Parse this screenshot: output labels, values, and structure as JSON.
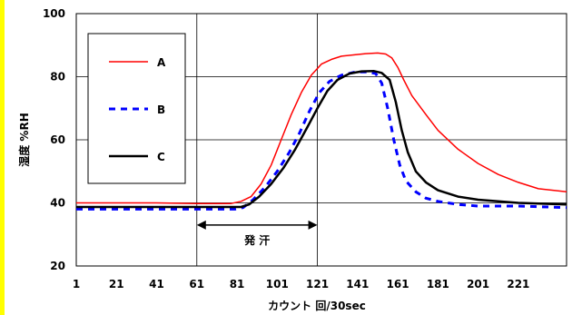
{
  "chart_data": {
    "type": "line",
    "xlabel": "カウント  回/30sec",
    "ylabel": "湿度  %RH",
    "xlim": [
      1,
      245
    ],
    "ylim": [
      20,
      100
    ],
    "x_ticks": [
      1,
      21,
      41,
      61,
      81,
      101,
      121,
      141,
      161,
      181,
      201,
      221
    ],
    "y_ticks": [
      20,
      40,
      60,
      80,
      100
    ],
    "grid": "horizontal gridlines at 40, 60, 80; vertical lines at x=61 and x=121",
    "legend_position": "top-left",
    "annotation": {
      "text": "発  汗",
      "x_start": 61,
      "x_end": 121,
      "y": 33
    },
    "colors": {
      "A": "#ff0000",
      "B": "#0000ff",
      "C": "#000000",
      "left_strip": "#ffff00"
    },
    "series": [
      {
        "name": "A",
        "style": "solid",
        "points": [
          [
            1,
            40
          ],
          [
            21,
            40
          ],
          [
            41,
            40
          ],
          [
            61,
            39.8
          ],
          [
            78,
            39.8
          ],
          [
            83,
            40.5
          ],
          [
            88,
            42
          ],
          [
            93,
            46
          ],
          [
            98,
            52
          ],
          [
            103,
            60
          ],
          [
            108,
            68
          ],
          [
            113,
            75
          ],
          [
            118,
            80.5
          ],
          [
            123,
            84
          ],
          [
            128,
            85.5
          ],
          [
            133,
            86.5
          ],
          [
            140,
            87
          ],
          [
            145,
            87.3
          ],
          [
            151,
            87.5
          ],
          [
            155,
            87.2
          ],
          [
            158,
            86
          ],
          [
            161,
            83
          ],
          [
            164,
            79
          ],
          [
            168,
            74
          ],
          [
            175,
            68
          ],
          [
            181,
            63
          ],
          [
            191,
            57
          ],
          [
            201,
            52.5
          ],
          [
            211,
            49
          ],
          [
            221,
            46.5
          ],
          [
            231,
            44.5
          ],
          [
            245,
            43.5
          ]
        ]
      },
      {
        "name": "B",
        "style": "dashed",
        "points": [
          [
            1,
            38
          ],
          [
            21,
            38
          ],
          [
            41,
            38
          ],
          [
            61,
            38
          ],
          [
            80,
            38
          ],
          [
            84,
            38.5
          ],
          [
            89,
            41
          ],
          [
            95,
            45
          ],
          [
            101,
            50
          ],
          [
            107,
            56
          ],
          [
            112,
            62
          ],
          [
            117,
            69
          ],
          [
            122,
            75
          ],
          [
            127,
            78.5
          ],
          [
            133,
            80.5
          ],
          [
            140,
            81.5
          ],
          [
            146,
            81.5
          ],
          [
            150,
            81
          ],
          [
            153,
            78
          ],
          [
            156,
            70
          ],
          [
            159,
            60
          ],
          [
            162,
            52
          ],
          [
            165,
            47
          ],
          [
            170,
            43.5
          ],
          [
            175,
            41.5
          ],
          [
            181,
            40.5
          ],
          [
            191,
            39.5
          ],
          [
            201,
            39
          ],
          [
            221,
            39
          ],
          [
            245,
            38.5
          ]
        ]
      },
      {
        "name": "C",
        "style": "solid-thick",
        "points": [
          [
            1,
            38.7
          ],
          [
            21,
            38.7
          ],
          [
            41,
            38.7
          ],
          [
            61,
            38.7
          ],
          [
            83,
            38.7
          ],
          [
            87,
            39.5
          ],
          [
            92,
            42
          ],
          [
            98,
            46
          ],
          [
            104,
            51
          ],
          [
            110,
            57
          ],
          [
            116,
            64
          ],
          [
            121,
            70
          ],
          [
            126,
            75.5
          ],
          [
            131,
            79
          ],
          [
            137,
            81
          ],
          [
            143,
            81.7
          ],
          [
            149,
            81.8
          ],
          [
            153,
            81.2
          ],
          [
            157,
            79
          ],
          [
            160,
            72
          ],
          [
            163,
            63
          ],
          [
            166,
            56
          ],
          [
            170,
            50
          ],
          [
            175,
            46.5
          ],
          [
            181,
            44
          ],
          [
            191,
            42
          ],
          [
            201,
            41
          ],
          [
            221,
            40
          ],
          [
            245,
            39.5
          ]
        ]
      }
    ]
  }
}
